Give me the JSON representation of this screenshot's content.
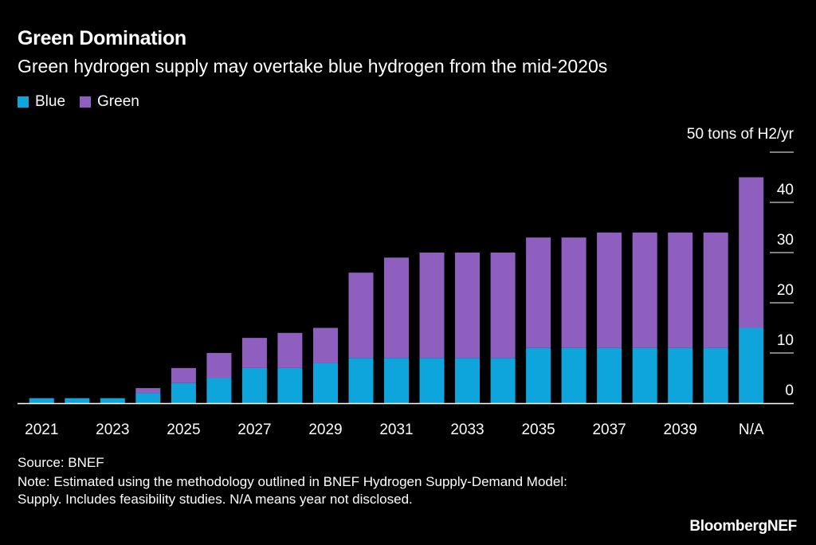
{
  "title": "Green Domination",
  "subtitle": "Green hydrogen supply may overtake blue hydrogen from the mid-2020s",
  "source": "Source: BNEF",
  "note": "Note: Estimated using the methodology outlined in BNEF Hydrogen Supply-Demand Model: Supply. Includes feasibility studies. N/A means year not disclosed.",
  "brand": "BloombergNEF",
  "colors": {
    "blue": "#0ea5dd",
    "green": "#8f5fbf",
    "background": "#000000",
    "text": "#ffffff"
  },
  "chart_data": {
    "type": "bar",
    "stacked": true,
    "unit_label": "50 tons of H2/yr",
    "categories": [
      "2021",
      "2022",
      "2023",
      "2024",
      "2025",
      "2026",
      "2027",
      "2028",
      "2029",
      "2030",
      "2031",
      "2032",
      "2033",
      "2034",
      "2035",
      "2036",
      "2037",
      "2038",
      "2039",
      "2040",
      "N/A"
    ],
    "x_tick_labels": [
      "2021",
      "",
      "2023",
      "",
      "2025",
      "",
      "2027",
      "",
      "2029",
      "",
      "2031",
      "",
      "2033",
      "",
      "2035",
      "",
      "2037",
      "",
      "2039",
      "",
      "N/A"
    ],
    "series": [
      {
        "name": "Blue",
        "color": "#0ea5dd",
        "values": [
          1,
          1,
          1,
          2,
          4,
          5,
          7,
          7,
          8,
          9,
          9,
          9,
          9,
          9,
          11,
          11,
          11,
          11,
          11,
          11,
          15
        ]
      },
      {
        "name": "Green",
        "color": "#8f5fbf",
        "values": [
          0,
          0,
          0,
          1,
          3,
          5,
          6,
          7,
          7,
          17,
          20,
          21,
          21,
          21,
          22,
          22,
          23,
          23,
          23,
          23,
          30
        ]
      }
    ],
    "yticks": [
      0,
      10,
      20,
      30,
      40
    ],
    "ylim": [
      0,
      50
    ],
    "grid": false,
    "legend": "top-left"
  }
}
